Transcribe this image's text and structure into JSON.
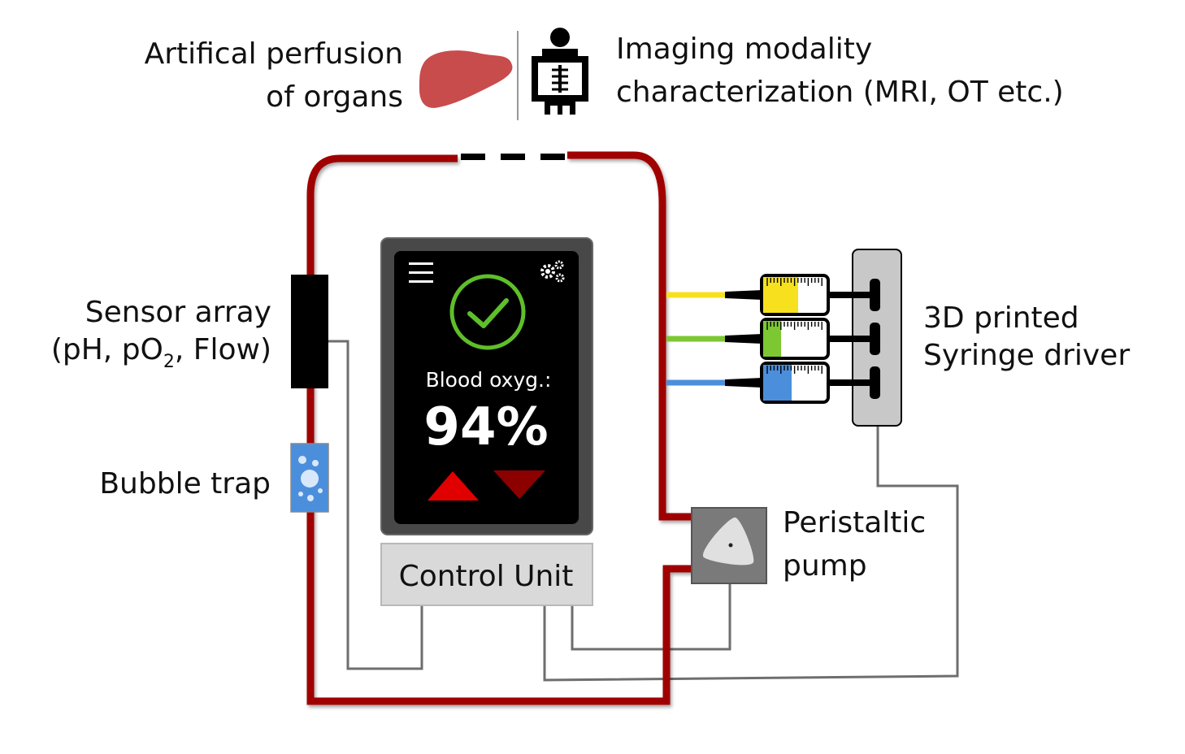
{
  "header": {
    "perfusion_line1": "Artifical perfusion",
    "perfusion_line2": "of organs",
    "imaging_line1": "Imaging modality",
    "imaging_line2": "characterization (MRI, OT etc.)"
  },
  "labels": {
    "sensor_line1": "Sensor array",
    "sensor_line2_pre": "(pH, pO",
    "sensor_line2_sub": "2",
    "sensor_line2_post": ", Flow)",
    "bubble_trap": "Bubble trap",
    "syringe_line1": "3D printed",
    "syringe_line2": "Syringe driver",
    "pump_line1": "Peristaltic",
    "pump_line2": "pump",
    "control_unit": "Control Unit"
  },
  "screen": {
    "menu_icon": "hamburger-menu-icon",
    "settings_icon": "gears-icon",
    "status_icon": "check-circle-icon",
    "metric_label": "Blood oxyg.:",
    "metric_value": "94%",
    "increase_icon": "triangle-up-icon",
    "decrease_icon": "triangle-down-icon"
  },
  "syringes": [
    {
      "color": "#f7e11f",
      "fill": 0.55
    },
    {
      "color": "#7dc832",
      "fill": 0.28
    },
    {
      "color": "#4b8fdc",
      "fill": 0.45
    }
  ],
  "colors": {
    "tubing": "#a00000",
    "wire": "#6e6e6e",
    "organ": "#c84c4c",
    "check": "#5fbf2a",
    "arrow_up": "#e00000",
    "arrow_down": "#8c0000",
    "bubble_trap": "#4b8fdc"
  }
}
